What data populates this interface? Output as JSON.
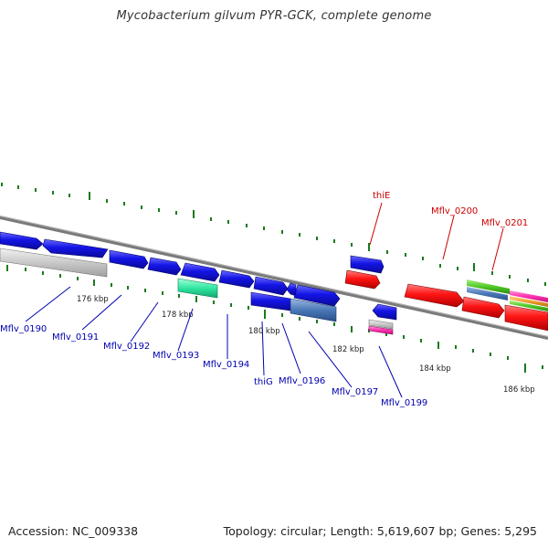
{
  "title": "Mycobacterium gilvum PYR-GCK, complete genome",
  "accession": "Accession: NC_009338",
  "summary": "Topology: circular; Length: 5,619,607 bp; Genes: 5,295",
  "colors": {
    "backbone": "#808080",
    "tick": "#1a7a1a",
    "blue_gene": "#1010e0",
    "red_gene": "#ff1010",
    "label_blue": "#0000b0",
    "label_red": "#cc0000",
    "kbp_text": "#222222"
  },
  "scale_labels": [
    "176 kbp",
    "178 kbp",
    "180 kbp",
    "182 kbp",
    "184 kbp",
    "186 kbp"
  ],
  "gene_labels": [
    {
      "text": "Mflv_0190",
      "color": "blue"
    },
    {
      "text": "Mflv_0191",
      "color": "blue"
    },
    {
      "text": "Mflv_0192",
      "color": "blue"
    },
    {
      "text": "Mflv_0193",
      "color": "blue"
    },
    {
      "text": "Mflv_0194",
      "color": "blue"
    },
    {
      "text": "thiG",
      "color": "blue"
    },
    {
      "text": "Mflv_0196",
      "color": "blue"
    },
    {
      "text": "Mflv_0197",
      "color": "blue"
    },
    {
      "text": "Mflv_0199",
      "color": "blue"
    },
    {
      "text": "thiE",
      "color": "red"
    },
    {
      "text": "Mflv_0200",
      "color": "red"
    },
    {
      "text": "Mflv_0201",
      "color": "red"
    }
  ]
}
